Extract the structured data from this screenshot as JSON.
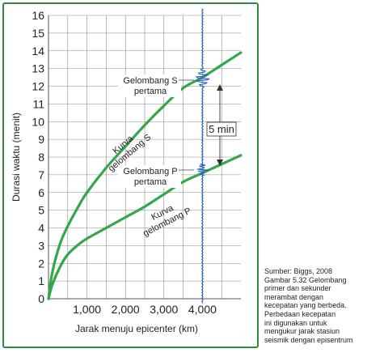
{
  "chart_data": {
    "type": "line",
    "xlabel": "Jarak menuju epicenter (km)",
    "ylabel": "Durasi waktu (menit)",
    "xlim": [
      0,
      5000
    ],
    "ylim": [
      0,
      16
    ],
    "x_ticks": [
      1000,
      2000,
      3000,
      4000
    ],
    "x_tick_labels": [
      "1,000",
      "2,000",
      "3,000",
      "4,000"
    ],
    "y_ticks": [
      0,
      1,
      2,
      3,
      4,
      5,
      6,
      7,
      8,
      9,
      10,
      11,
      12,
      13,
      14,
      15,
      16
    ],
    "grid": true,
    "series": [
      {
        "name": "Kurva gelombang S",
        "color": "#33a848",
        "x": [
          0,
          100,
          300,
          500,
          800,
          1000,
          1500,
          2000,
          2500,
          3000,
          3500,
          4000,
          4500,
          5000
        ],
        "y": [
          0,
          1.5,
          3.1,
          4.1,
          5.3,
          6.0,
          7.4,
          8.6,
          9.8,
          10.9,
          11.9,
          12.5,
          13.2,
          13.9
        ]
      },
      {
        "name": "Kurva gelombang P",
        "color": "#33a848",
        "x": [
          0,
          100,
          300,
          500,
          800,
          1000,
          1500,
          2000,
          2500,
          3000,
          3500,
          4000,
          4500,
          5000
        ],
        "y": [
          0,
          0.8,
          1.8,
          2.5,
          3.1,
          3.4,
          4.0,
          4.6,
          5.2,
          5.9,
          6.6,
          7.1,
          7.6,
          8.1
        ]
      }
    ],
    "annotations": {
      "s_first_line1": "Gelombang S",
      "s_first_line2": "pertama",
      "p_first_line1": "Gelombang P",
      "p_first_line2": "pertama",
      "s_curve_line1": "Kurva",
      "s_curve_line2": "gelombang S",
      "p_curve_line1": "Kurva",
      "p_curve_line2": "gelombang P",
      "interval": "5 min"
    },
    "seismogram": {
      "station_distance": 4000,
      "color": "#1f5fbf",
      "p_arrival": 7.3,
      "s_arrival": 12.4
    }
  },
  "caption": [
    "Sumber: Biggs, 2008",
    "Gambar 5.32 Gelombang",
    "primer dan sekunder",
    "merambat dengan",
    "kecepatan yang berbeda.",
    "Perbedaan kecepatan",
    "ini digunakan untuk",
    "mengukur jarak stasiun",
    "seismik dengan episentrum"
  ]
}
